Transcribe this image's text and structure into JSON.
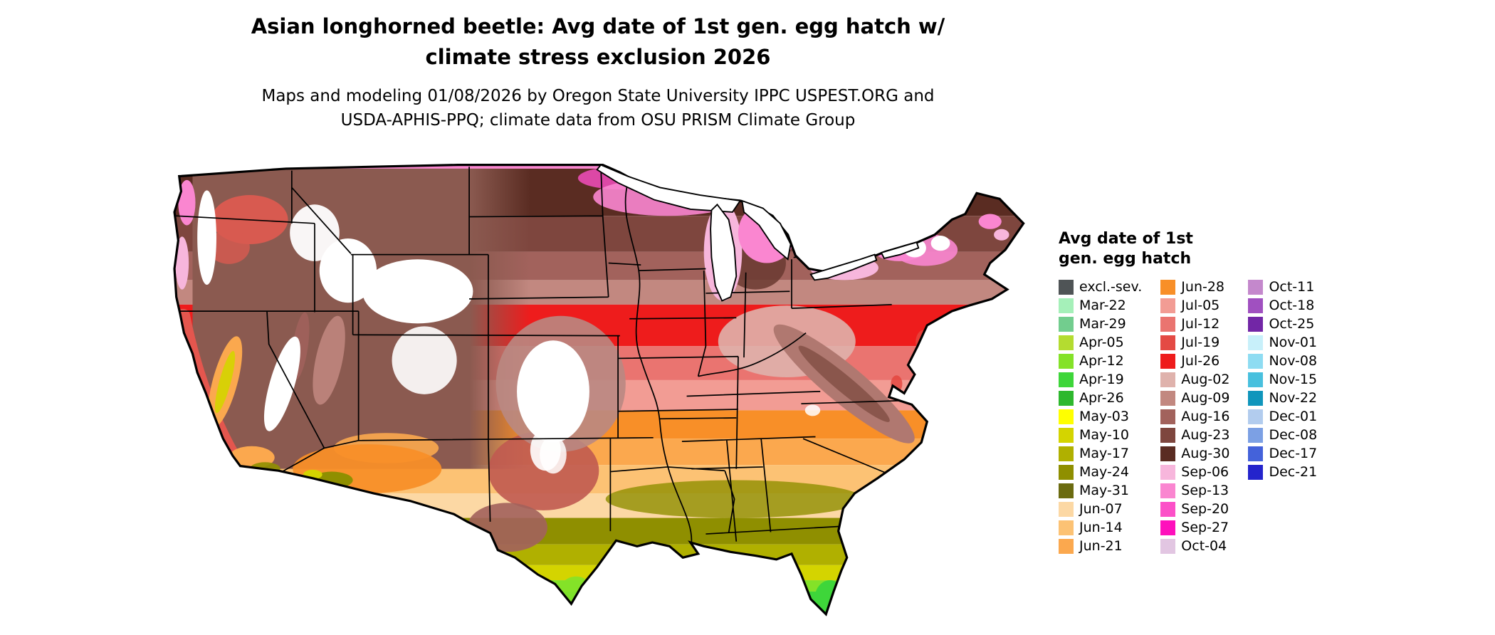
{
  "figure": {
    "title_line1": "Asian longhorned beetle: Avg date of 1st gen. egg hatch w/",
    "title_line2": "climate stress exclusion 2026",
    "subtitle_line1": "Maps and modeling 01/08/2026 by Oregon State University IPPC USPEST.ORG and",
    "subtitle_line2": "USDA-APHIS-PPQ; climate data from OSU PRISM Climate Group"
  },
  "map": {
    "area": "contiguous United States choropleth raster of average first-generation egg hatch date"
  },
  "legend": {
    "title_line1": "Avg date of 1st",
    "title_line2": "gen. egg hatch",
    "columns": [
      [
        {
          "label": "excl.-sev.",
          "color": "#4f5456"
        },
        {
          "label": "Mar-22",
          "color": "#a5f0b9"
        },
        {
          "label": "Mar-29",
          "color": "#72cd8e"
        },
        {
          "label": "Apr-05",
          "color": "#b4dc30"
        },
        {
          "label": "Apr-12",
          "color": "#84e228"
        },
        {
          "label": "Apr-19",
          "color": "#3ed63a"
        },
        {
          "label": "Apr-26",
          "color": "#2eb82e"
        },
        {
          "label": "May-03",
          "color": "#ffff00"
        },
        {
          "label": "May-10",
          "color": "#d4d400"
        },
        {
          "label": "May-17",
          "color": "#b0b000"
        },
        {
          "label": "May-24",
          "color": "#8f8f00"
        },
        {
          "label": "May-31",
          "color": "#6b6b10"
        },
        {
          "label": "Jun-07",
          "color": "#fcd8a4"
        },
        {
          "label": "Jun-14",
          "color": "#fcc274"
        },
        {
          "label": "Jun-21",
          "color": "#fba84e"
        }
      ],
      [
        {
          "label": "Jun-28",
          "color": "#f88f28"
        },
        {
          "label": "Jul-05",
          "color": "#f29c94"
        },
        {
          "label": "Jul-12",
          "color": "#ea7470"
        },
        {
          "label": "Jul-19",
          "color": "#e44a44"
        },
        {
          "label": "Jul-26",
          "color": "#ee1c1c"
        },
        {
          "label": "Aug-02",
          "color": "#dfb2ac"
        },
        {
          "label": "Aug-09",
          "color": "#c28880"
        },
        {
          "label": "Aug-16",
          "color": "#a2625c"
        },
        {
          "label": "Aug-23",
          "color": "#7e463e"
        },
        {
          "label": "Aug-30",
          "color": "#5a2c22"
        },
        {
          "label": "Sep-06",
          "color": "#f7b6dc"
        },
        {
          "label": "Sep-13",
          "color": "#fa86d0"
        },
        {
          "label": "Sep-20",
          "color": "#fc50c8"
        },
        {
          "label": "Sep-27",
          "color": "#fe10bc"
        },
        {
          "label": "Oct-04",
          "color": "#e2c6e2"
        }
      ],
      [
        {
          "label": "Oct-11",
          "color": "#c488cc"
        },
        {
          "label": "Oct-18",
          "color": "#a050c0"
        },
        {
          "label": "Oct-25",
          "color": "#7226a6"
        },
        {
          "label": "Nov-01",
          "color": "#c8f0fa"
        },
        {
          "label": "Nov-08",
          "color": "#8edcf2"
        },
        {
          "label": "Nov-15",
          "color": "#48c0de"
        },
        {
          "label": "Nov-22",
          "color": "#1096bc"
        },
        {
          "label": "Dec-01",
          "color": "#b2ccee"
        },
        {
          "label": "Dec-08",
          "color": "#7ca0e4"
        },
        {
          "label": "Dec-17",
          "color": "#4462da"
        },
        {
          "label": "Dec-21",
          "color": "#2424cc"
        }
      ]
    ]
  }
}
